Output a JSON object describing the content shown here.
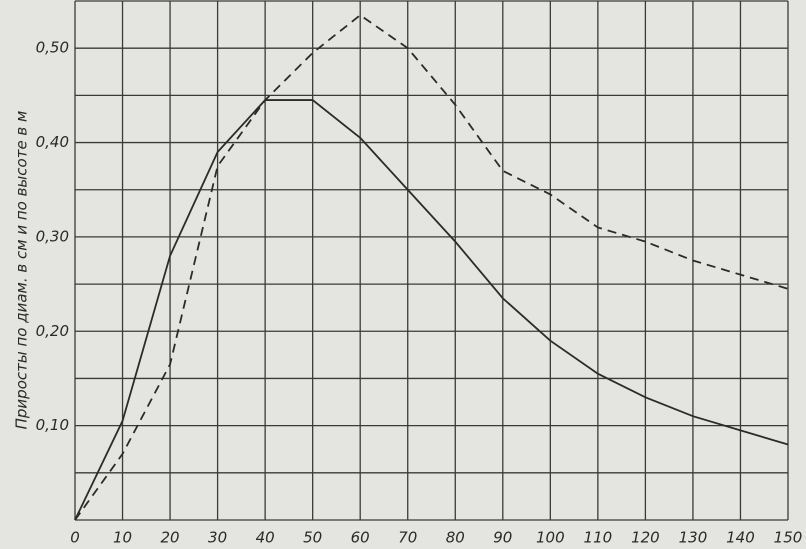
{
  "chart_data": {
    "type": "line",
    "y_label": "Приросты по диам. в см и по высоте в м",
    "x": [
      0,
      10,
      20,
      30,
      40,
      50,
      60,
      70,
      80,
      90,
      100,
      110,
      120,
      130,
      140,
      150
    ],
    "series": [
      {
        "color": "#2b2b2b",
        "style": "solid",
        "values": [
          0,
          0.105,
          0.28,
          0.39,
          0.445,
          0.445,
          0.405,
          0.35,
          0.295,
          0.235,
          0.19,
          0.155,
          0.13,
          0.11,
          0.095,
          0.08
        ]
      },
      {
        "color": "#2b2b2b",
        "style": "dashed",
        "values": [
          0,
          0.07,
          0.165,
          0.375,
          0.445,
          0.495,
          0.535,
          0.5,
          0.44,
          0.37,
          0.345,
          0.31,
          0.295,
          0.275,
          0.26,
          0.245
        ]
      }
    ],
    "xlim": [
      0,
      150
    ],
    "ylim": [
      0,
      0.55
    ],
    "xticks": [
      0,
      10,
      20,
      30,
      40,
      50,
      60,
      70,
      80,
      90,
      100,
      110,
      120,
      130,
      140,
      150
    ],
    "yticks": [
      {
        "value": 0.1,
        "label": "0,10"
      },
      {
        "value": 0.2,
        "label": "0,20"
      },
      {
        "value": 0.3,
        "label": "0,30"
      },
      {
        "value": 0.4,
        "label": "0,40"
      },
      {
        "value": 0.5,
        "label": "0,50"
      }
    ],
    "ygrid": [
      0,
      0.05,
      0.1,
      0.15,
      0.2,
      0.25,
      0.3,
      0.35,
      0.4,
      0.45,
      0.5,
      0.55
    ],
    "grid": true
  }
}
